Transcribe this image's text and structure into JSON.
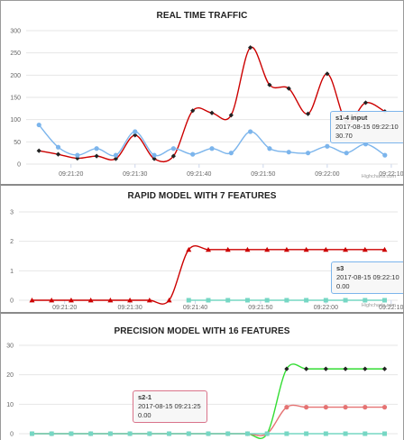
{
  "charts": [
    {
      "id": "traffic",
      "title": "REAL TIME TRAFFIC",
      "credits": "Highcharts.com",
      "tooltip": {
        "series": "s1-4 input",
        "time": "2017-08-15 09:22:10",
        "value": "30.70",
        "border_color": "#7cb5ec"
      },
      "colors": {
        "series_a": "#cc0000",
        "series_b": "#7cb5ec"
      }
    },
    {
      "id": "rapid",
      "title": "RAPID MODEL WITH 7 FEATURES",
      "credits": "Highcharts.com",
      "tooltip": {
        "series": "s3",
        "time": "2017-08-15 09:22:10",
        "value": "0.00",
        "border_color": "#7cb5ec"
      },
      "colors": {
        "series_a": "#cc0000",
        "series_b": "#76d7c4"
      }
    },
    {
      "id": "precision",
      "title": "PRECISION MODEL WITH 16 FEATURES",
      "tooltip": {
        "series": "s2-1",
        "time": "2017-08-15 09:21:25",
        "value": "0.00",
        "border_color": "#d9738a"
      },
      "colors": {
        "series_a": "#33dd33",
        "series_b": "#e57373",
        "series_c": "#76d7c4"
      }
    }
  ],
  "chart_data": [
    {
      "type": "line",
      "title": "REAL TIME TRAFFIC",
      "x_ticks": [
        "09:21:20",
        "09:21:30",
        "09:21:40",
        "09:21:50",
        "09:22:00",
        "09:22:10"
      ],
      "ylim": [
        0,
        300
      ],
      "y_ticks": [
        0,
        50,
        100,
        150,
        200,
        250,
        300
      ],
      "series": [
        {
          "marker": "diamond",
          "color": "#cc0000",
          "x": [
            "09:21:15",
            "09:21:18",
            "09:21:21",
            "09:21:24",
            "09:21:27",
            "09:21:30",
            "09:21:33",
            "09:21:36",
            "09:21:39",
            "09:21:42",
            "09:21:45",
            "09:21:48",
            "09:21:51",
            "09:21:54",
            "09:21:57",
            "09:22:00",
            "09:22:03",
            "09:22:06",
            "09:22:09"
          ],
          "values": [
            30,
            22,
            13,
            18,
            12,
            65,
            12,
            18,
            120,
            115,
            110,
            262,
            178,
            170,
            113,
            203,
            95,
            138,
            118
          ]
        },
        {
          "name": "s1-4 input",
          "marker": "circle",
          "color": "#7cb5ec",
          "x": [
            "09:21:15",
            "09:21:18",
            "09:21:21",
            "09:21:24",
            "09:21:27",
            "09:21:30",
            "09:21:33",
            "09:21:36",
            "09:21:39",
            "09:21:42",
            "09:21:45",
            "09:21:48",
            "09:21:51",
            "09:21:54",
            "09:21:57",
            "09:22:00",
            "09:22:03",
            "09:22:06",
            "09:22:09"
          ],
          "values": [
            88,
            38,
            20,
            35,
            20,
            73,
            20,
            35,
            22,
            35,
            25,
            73,
            35,
            27,
            25,
            40,
            25,
            45,
            20
          ]
        }
      ]
    },
    {
      "type": "line",
      "title": "RAPID MODEL WITH 7 FEATURES",
      "x_ticks": [
        "09:21:20",
        "09:21:30",
        "09:21:40",
        "09:21:50",
        "09:22:00",
        "09:22:10"
      ],
      "ylim": [
        0,
        3
      ],
      "y_ticks": [
        0,
        1,
        2,
        3
      ],
      "series": [
        {
          "marker": "triangle",
          "color": "#cc0000",
          "x": [
            "09:21:15",
            "09:21:18",
            "09:21:21",
            "09:21:24",
            "09:21:27",
            "09:21:30",
            "09:21:33",
            "09:21:36",
            "09:21:39",
            "09:21:42",
            "09:21:45",
            "09:21:48",
            "09:21:51",
            "09:21:54",
            "09:21:57",
            "09:22:00",
            "09:22:03",
            "09:22:06",
            "09:22:09"
          ],
          "values": [
            0,
            0,
            0,
            0,
            0,
            0,
            0,
            0,
            1.72,
            1.72,
            1.72,
            1.72,
            1.72,
            1.72,
            1.72,
            1.72,
            1.72,
            1.72,
            1.72
          ]
        },
        {
          "name": "s3",
          "marker": "square",
          "color": "#76d7c4",
          "x": [
            "09:21:39",
            "09:21:42",
            "09:21:45",
            "09:21:48",
            "09:21:51",
            "09:21:54",
            "09:21:57",
            "09:22:00",
            "09:22:03",
            "09:22:06",
            "09:22:09"
          ],
          "values": [
            0,
            0,
            0,
            0,
            0,
            0,
            0,
            0,
            0,
            0,
            0
          ]
        }
      ]
    },
    {
      "type": "line",
      "title": "PRECISION MODEL WITH 16 FEATURES",
      "ylim": [
        0,
        30
      ],
      "y_ticks": [
        0,
        10,
        20,
        30
      ],
      "series": [
        {
          "marker": "diamond",
          "color": "#33dd33",
          "x": [
            "09:21:15",
            "09:21:18",
            "09:21:21",
            "09:21:24",
            "09:21:27",
            "09:21:30",
            "09:21:33",
            "09:21:36",
            "09:21:39",
            "09:21:42",
            "09:21:45",
            "09:21:48",
            "09:21:51",
            "09:21:54",
            "09:21:57",
            "09:22:00",
            "09:22:03",
            "09:22:06",
            "09:22:09"
          ],
          "values": [
            0,
            0,
            0,
            0,
            0,
            0,
            0,
            0,
            0,
            0,
            0,
            0,
            0,
            22,
            22,
            22,
            22,
            22,
            22
          ]
        },
        {
          "marker": "circle",
          "color": "#e57373",
          "x": [
            "09:21:15",
            "09:21:18",
            "09:21:21",
            "09:21:24",
            "09:21:27",
            "09:21:30",
            "09:21:33",
            "09:21:36",
            "09:21:39",
            "09:21:42",
            "09:21:45",
            "09:21:48",
            "09:21:51",
            "09:21:54",
            "09:21:57",
            "09:22:00",
            "09:22:03",
            "09:22:06",
            "09:22:09"
          ],
          "values": [
            0,
            0,
            0,
            0,
            0,
            0,
            0,
            0,
            0,
            0,
            0,
            0,
            0,
            9,
            9,
            9,
            9,
            9,
            9
          ]
        },
        {
          "name": "s2-1",
          "marker": "square",
          "color": "#76d7c4",
          "x": [
            "09:21:15",
            "09:21:18",
            "09:21:21",
            "09:21:24",
            "09:21:27",
            "09:21:30",
            "09:21:33",
            "09:21:36",
            "09:21:39",
            "09:21:42",
            "09:21:45",
            "09:21:48",
            "09:21:51",
            "09:21:54",
            "09:21:57",
            "09:22:00",
            "09:22:03",
            "09:22:06",
            "09:22:09"
          ],
          "values": [
            0,
            0,
            0,
            0,
            0,
            0,
            0,
            0,
            0,
            0,
            0,
            0,
            0,
            0,
            0,
            0,
            0,
            0,
            0
          ]
        }
      ]
    }
  ]
}
